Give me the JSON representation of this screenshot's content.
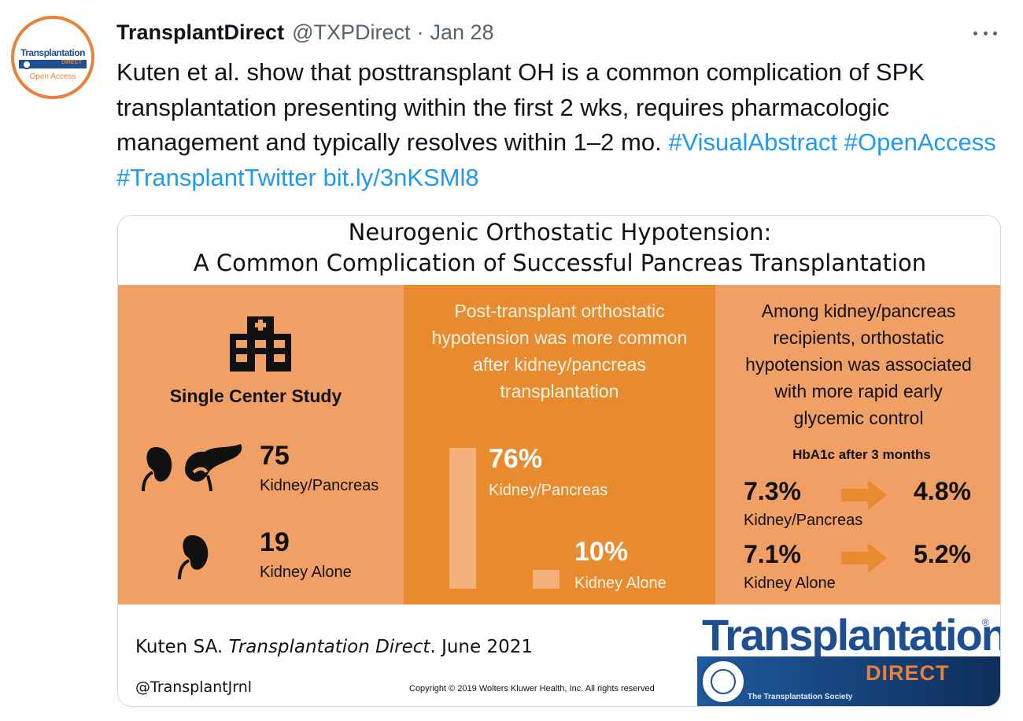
{
  "tweet": {
    "display_name": "TransplantDirect",
    "handle": "@TXPDirect",
    "separator": "·",
    "date": "Jan 28",
    "text_plain": "Kuten et al. show that posttransplant OH is a common complication of SPK transplantation presenting within the first 2 wks, requires pharmacologic management and typically resolves within 1–2 mo.",
    "hashtag_visualabstract": "#VisualAbstract",
    "hashtag_openaccess": "#OpenAccess",
    "hashtag_transplanttwitter": "#TransplantTwitter",
    "link": "bit.ly/3nKSMl8"
  },
  "avatar": {
    "title": "Transplantation",
    "band": "DIRECT",
    "open_access": "Open Access"
  },
  "card": {
    "title_line1": "Neurogenic Orthostatic Hypotension:",
    "title_line2": "A Common Complication of Successful Pancreas Transplantation",
    "panel1": {
      "label": "Single Center Study",
      "kp_count": "75",
      "kp_label": "Kidney/Pancreas",
      "ka_count": "19",
      "ka_label": "Kidney Alone"
    },
    "panel2": {
      "line1": "Post-transplant orthostatic",
      "line2": "hypotension was more common",
      "line3": "after kidney/pancreas",
      "line4": "transplantation",
      "kp_pct": "76%",
      "kp_label": "Kidney/Pancreas",
      "kp_value": 0.76,
      "ka_pct": "10%",
      "ka_label": "Kidney Alone",
      "ka_value": 0.1
    },
    "panel3": {
      "line1": "Among kidney/pancreas",
      "line2": "recipients, orthostatic",
      "line3": "hypotension was associated",
      "line4": "with more rapid early",
      "line5": "glycemic control",
      "hba_title": "HbA1c after 3 months",
      "kp_before": "7.3%",
      "kp_after": "4.8%",
      "kp_label": "Kidney/Pancreas",
      "ka_before": "7.1%",
      "ka_after": "5.2%",
      "ka_label": "Kidney Alone"
    },
    "citation_author": "Kuten SA.",
    "citation_journal": "Transplantation Direct",
    "citation_date": ". June 2021",
    "twitter_handle": "@TransplantJrnl",
    "copyright": "Copyright © 2019 Wolters Kluwer Health, Inc. All rights reserved",
    "logo": {
      "word": "Transplantation",
      "registered": "®",
      "direct": "DIRECT",
      "society": "The Transplantation Society"
    }
  },
  "colors": {
    "link": "#1d9bf0",
    "orange_light": "#f0a064",
    "orange_dark": "#e88a2e",
    "brand_blue": "#1d4f91"
  }
}
